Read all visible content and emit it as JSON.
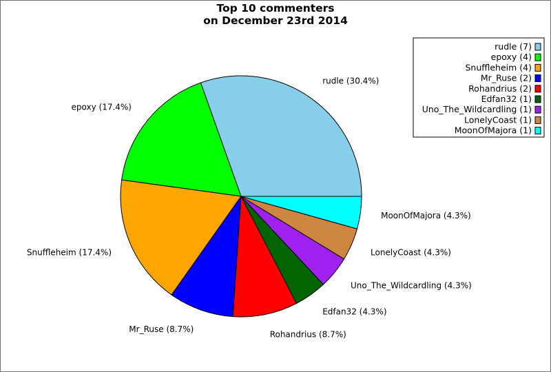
{
  "chart_data": {
    "type": "pie",
    "title": "Top 10 commenters",
    "subtitle": "on December 23rd 2014",
    "slices": [
      {
        "name": "rudle",
        "value": 7,
        "percent_label": "rudle (30.4%)",
        "legend_label": "rudle (7)",
        "color": "#87ceeb"
      },
      {
        "name": "epoxy",
        "value": 4,
        "percent_label": "epoxy (17.4%)",
        "legend_label": "epoxy (4)",
        "color": "#00ff00"
      },
      {
        "name": "Snuffleheim",
        "value": 4,
        "percent_label": "Snuffleheim (17.4%)",
        "legend_label": "Snuffleheim (4)",
        "color": "#ffa500"
      },
      {
        "name": "Mr_Ruse",
        "value": 2,
        "percent_label": "Mr_Ruse (8.7%)",
        "legend_label": "Mr_Ruse (2)",
        "color": "#0000ff"
      },
      {
        "name": "Rohandrius",
        "value": 2,
        "percent_label": "Rohandrius (8.7%)",
        "legend_label": "Rohandrius (2)",
        "color": "#ff0000"
      },
      {
        "name": "Edfan32",
        "value": 1,
        "percent_label": "Edfan32 (4.3%)",
        "legend_label": "Edfan32 (1)",
        "color": "#006400"
      },
      {
        "name": "Uno_The_Wildcardling",
        "value": 1,
        "percent_label": "Uno_The_Wildcardling (4.3%)",
        "legend_label": "Uno_The_Wildcardling (1)",
        "color": "#a020f0"
      },
      {
        "name": "LonelyCoast",
        "value": 1,
        "percent_label": "LonelyCoast (4.3%)",
        "legend_label": "LonelyCoast (1)",
        "color": "#cd853f"
      },
      {
        "name": "MoonOfMajora",
        "value": 1,
        "percent_label": "MoonOfMajora (4.3%)",
        "legend_label": "MoonOfMajora (1)",
        "color": "#00ffff"
      }
    ],
    "start_angle_deg": 0,
    "direction": "counterclockwise",
    "legend_position": "top-right"
  }
}
